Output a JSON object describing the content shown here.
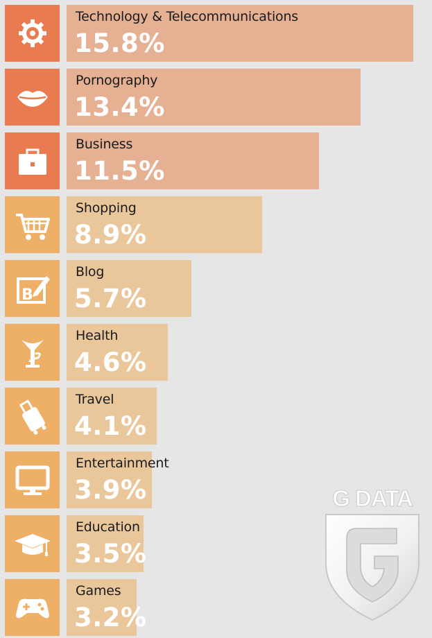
{
  "chart_data": {
    "type": "bar",
    "orientation": "horizontal",
    "title": "",
    "xlabel": "",
    "ylabel": "",
    "unit": "%",
    "xlim": [
      0,
      16
    ],
    "categories": [
      "Technology & Telecommunications",
      "Pornography",
      "Business",
      "Shopping",
      "Blog",
      "Health",
      "Travel",
      "Entertainment",
      "Education",
      "Games"
    ],
    "values": [
      15.8,
      13.4,
      11.5,
      8.9,
      5.7,
      4.6,
      4.1,
      3.9,
      3.5,
      3.2
    ],
    "labels": [
      "15.8%",
      "13.4%",
      "11.5%",
      "8.9%",
      "5.7%",
      "4.6%",
      "4.1%",
      "3.9%",
      "3.5%",
      "3.2%"
    ],
    "icons": [
      "gear-icon",
      "lips-icon",
      "briefcase-icon",
      "shopping-cart-icon",
      "blog-icon",
      "health-icon",
      "luggage-icon",
      "monitor-icon",
      "graduation-cap-icon",
      "gamepad-icon"
    ],
    "icon_colors": [
      "#ea7a50",
      "#ea7a50",
      "#ea7a50",
      "#eeaf66",
      "#eeaf66",
      "#eeaf66",
      "#eeaf66",
      "#eeaf66",
      "#eeaf66",
      "#eeaf66"
    ],
    "bar_colors": [
      "#e6b093",
      "#e6b093",
      "#e6b093",
      "#eac79a",
      "#eac79a",
      "#eac79a",
      "#eac79a",
      "#eac79a",
      "#eac79a",
      "#eac79a"
    ]
  },
  "brand": {
    "logo_text": "G DATA"
  }
}
